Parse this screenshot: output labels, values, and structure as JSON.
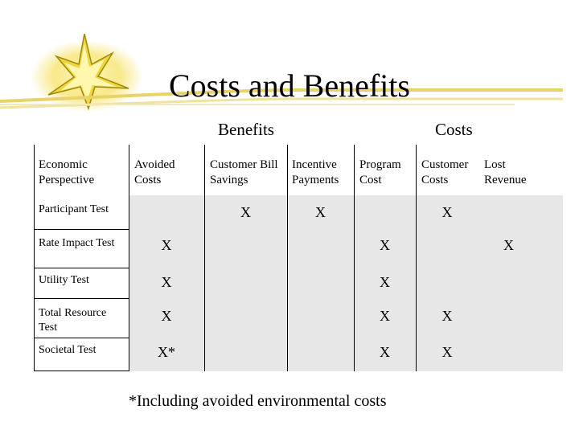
{
  "title": "Costs and Benefits",
  "groups": {
    "benefits": "Benefits",
    "costs": "Costs"
  },
  "columns": [
    "Economic Perspective",
    "Avoided Costs",
    "Customer Bill Savings",
    "Incentive Payments",
    "Program Cost",
    "Customer Costs",
    "Lost Revenue"
  ],
  "rows": [
    {
      "label": "Participant Test",
      "cells": [
        "",
        "X",
        "X",
        "",
        "X",
        ""
      ]
    },
    {
      "label": "Rate Impact Test",
      "cells": [
        "X",
        "",
        "",
        "X",
        "",
        "X"
      ]
    },
    {
      "label": "Utility Test",
      "cells": [
        "X",
        "",
        "",
        "X",
        "",
        ""
      ]
    },
    {
      "label": "Total Resource Test",
      "cells": [
        "X",
        "",
        "",
        "X",
        "X",
        ""
      ]
    },
    {
      "label": "Societal Test",
      "cells": [
        "X*",
        "",
        "",
        "X",
        "X",
        ""
      ]
    }
  ],
  "footnote": "*Including avoided environmental costs",
  "colors": {
    "cell_background": "#e7e7e7",
    "decoration": "#f6e05a"
  }
}
